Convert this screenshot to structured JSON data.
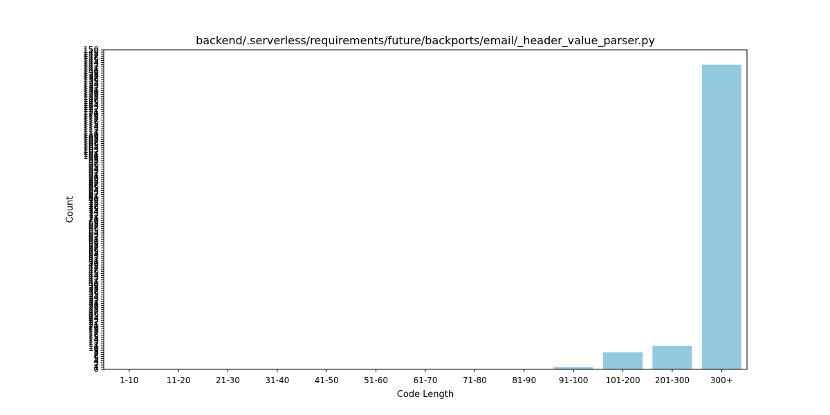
{
  "chart_data": {
    "type": "bar",
    "title": "backend/.serverless/requirements/future/backports/email/_header_value_parser.py",
    "xlabel": "Code Length",
    "ylabel": "Count",
    "categories": [
      "1-10",
      "11-20",
      "21-30",
      "31-40",
      "41-50",
      "51-60",
      "61-70",
      "71-80",
      "81-90",
      "91-100",
      "101-200",
      "201-300",
      "300+"
    ],
    "values": [
      0,
      0,
      0,
      0,
      0,
      0,
      0,
      0,
      0,
      1,
      8,
      11,
      143
    ],
    "ylim": [
      0,
      150
    ],
    "bar_color": "#92c9de",
    "grid": false,
    "legend": "none"
  }
}
